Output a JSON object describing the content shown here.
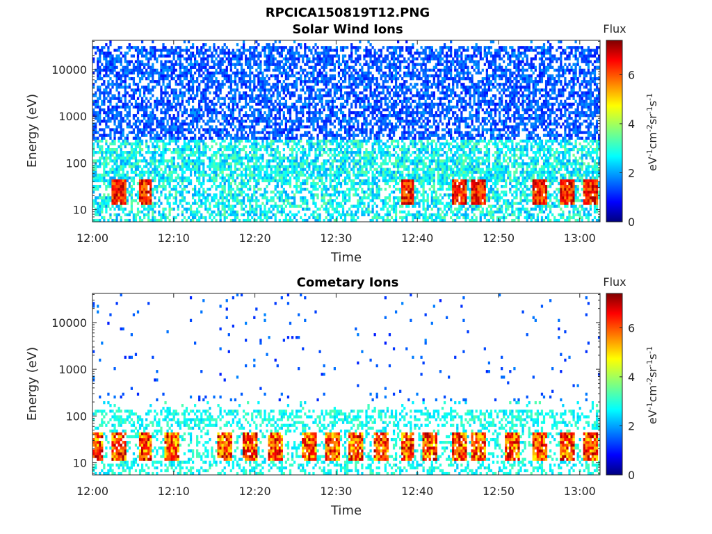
{
  "figure": {
    "title": "RPCICA150819T12.PNG"
  },
  "chart_data": [
    {
      "type": "heatmap",
      "title": "Solar Wind Ions",
      "xlabel": "Time",
      "ylabel": "Energy (eV)",
      "xticks": [
        "12:00",
        "12:10",
        "12:20",
        "12:30",
        "12:40",
        "12:50",
        "13:00"
      ],
      "xlim_minutes": [
        0,
        62.5
      ],
      "yscale": "log",
      "yticks": [
        10,
        100,
        1000,
        10000
      ],
      "ytick_labels": [
        "10",
        "100",
        "1000",
        "10000"
      ],
      "ylim": [
        5.5,
        42000
      ],
      "colorbar": {
        "label": "Flux",
        "unit": "eV-1cm-2sr-1s-1",
        "range": [
          0,
          7.4
        ],
        "ticks": [
          "0",
          "2",
          "4",
          "6"
        ]
      },
      "notes": "Dense low-level (~1-2) counts across all energies; ~3 near 100-400 eV; hotspots (~6-7) near 20-40 eV",
      "hotspots_minutes": [
        3.2,
        6.5,
        38.8,
        45.3,
        47.6,
        55.0,
        58.5,
        61.3
      ]
    },
    {
      "type": "heatmap",
      "title": "Cometary Ions",
      "xlabel": "Time",
      "ylabel": "Energy (eV)",
      "xticks": [
        "12:00",
        "12:10",
        "12:20",
        "12:30",
        "12:40",
        "12:50",
        "13:00"
      ],
      "xlim_minutes": [
        0,
        62.5
      ],
      "yscale": "log",
      "yticks": [
        10,
        100,
        1000,
        10000
      ],
      "ytick_labels": [
        "10",
        "100",
        "1000",
        "10000"
      ],
      "ylim": [
        5.5,
        42000
      ],
      "colorbar": {
        "label": "Flux",
        "unit": "eV-1cm-2sr-1s-1",
        "range": [
          0,
          7.4
        ],
        "ticks": [
          "0",
          "2",
          "4",
          "6"
        ]
      },
      "notes": "Sparse high-energy counts; band near 80-120 eV; frequent intense bursts near 15-40 eV",
      "hotspots_minutes": [
        0.4,
        3.2,
        6.5,
        9.8,
        16.2,
        19.3,
        22.5,
        26.8,
        29.6,
        32.4,
        35.6,
        38.8,
        41.5,
        45.3,
        47.6,
        51.8,
        55.0,
        58.5,
        61.3
      ]
    }
  ]
}
